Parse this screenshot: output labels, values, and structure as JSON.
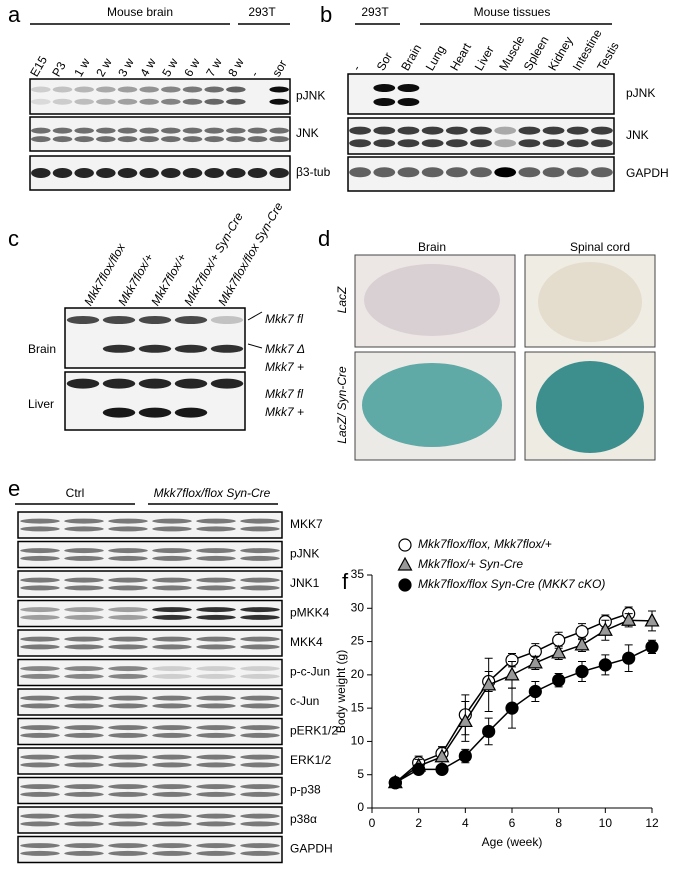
{
  "panel_a": {
    "label": "a",
    "headers": [
      "Mouse brain",
      "293T"
    ],
    "lanes": [
      "E15",
      "P3",
      "1 w",
      "2 w",
      "3 w",
      "4 w",
      "5 w",
      "6 w",
      "7 w",
      "8 w",
      "-",
      "sor"
    ],
    "blots": [
      "pJNK",
      "JNK",
      "β3-tub"
    ]
  },
  "panel_b": {
    "label": "b",
    "headers": [
      "293T",
      "Mouse tissues"
    ],
    "lanes": [
      "-",
      "Sor",
      "Brain",
      "Lung",
      "Heart",
      "Liver",
      "Muscle",
      "Spleen",
      "Kidney",
      "Intestine",
      "Testis"
    ],
    "blots": [
      "pJNK",
      "JNK",
      "GAPDH"
    ]
  },
  "panel_c": {
    "label": "c",
    "lanes": [
      "Mkk7flox/flox",
      "Mkk7flox/+",
      "Mkk7flox/+",
      "Mkk7flox/+ Syn-Cre",
      "Mkk7flox/flox Syn-Cre"
    ],
    "rows": [
      "Brain",
      "Liver"
    ],
    "band_labels": [
      "Mkk7 fl",
      "Mkk7 Δ",
      "Mkk7 +",
      "Mkk7 fl",
      "Mkk7 +"
    ]
  },
  "panel_d": {
    "label": "d",
    "columns": [
      "Brain",
      "Spinal cord"
    ],
    "rows": [
      "LacZ",
      "LacZ/ Syn-Cre"
    ]
  },
  "panel_e": {
    "label": "e",
    "groups": [
      "Ctrl",
      "Mkk7flox/flox Syn-Cre"
    ],
    "blots": [
      "MKK7",
      "pJNK",
      "JNK1",
      "pMKK4",
      "MKK4",
      "p-c-Jun",
      "c-Jun",
      "pERK1/2",
      "ERK1/2",
      "p-p38",
      "p38α",
      "GAPDH"
    ]
  },
  "panel_f": {
    "label": "f"
  },
  "chart_data": {
    "type": "line",
    "xlabel": "Age (week)",
    "ylabel": "Body weight (g)",
    "x": [
      1,
      2,
      3,
      4,
      5,
      6,
      7,
      8,
      9,
      10,
      11,
      12
    ],
    "xlim": [
      0,
      12
    ],
    "xticks": [
      0,
      2,
      4,
      6,
      8,
      10,
      12
    ],
    "ylim": [
      0,
      35
    ],
    "yticks": [
      0,
      5,
      10,
      15,
      20,
      25,
      30,
      35
    ],
    "line_color": "#000000",
    "series": [
      {
        "name": "Mkk7flox/flox, Mkk7flox/+",
        "color": "#ffffff",
        "marker": "circle",
        "values": [
          3.8,
          6.8,
          8.2,
          14,
          19,
          22.2,
          23.5,
          25.2,
          26.5,
          28,
          29.2,
          null
        ],
        "errors": [
          0.5,
          1,
          1,
          3,
          1.5,
          1,
          1.2,
          1.2,
          1.2,
          1,
          1,
          null
        ]
      },
      {
        "name": "Mkk7flox/+ Syn-Cre",
        "color": "#999999",
        "marker": "triangle",
        "values": [
          3.8,
          6.3,
          7.7,
          13,
          18.5,
          20,
          21.8,
          23.3,
          24.5,
          26.7,
          28.2,
          28.1
        ],
        "errors": [
          0.5,
          1,
          1.5,
          3,
          4,
          2,
          1,
          1,
          1,
          1.5,
          1,
          1.5
        ]
      },
      {
        "name": "Mkk7flox/flox Syn-Cre (MKK7 cKO)",
        "color": "#000000",
        "marker": "circle",
        "values": [
          3.8,
          5.8,
          5.8,
          7.8,
          11.5,
          15,
          17.5,
          19.2,
          20.5,
          21.5,
          22.5,
          24.2
        ],
        "errors": [
          0.7,
          0.5,
          0.5,
          1,
          2,
          3,
          1.5,
          1,
          1.5,
          1.5,
          2,
          1
        ]
      }
    ]
  }
}
